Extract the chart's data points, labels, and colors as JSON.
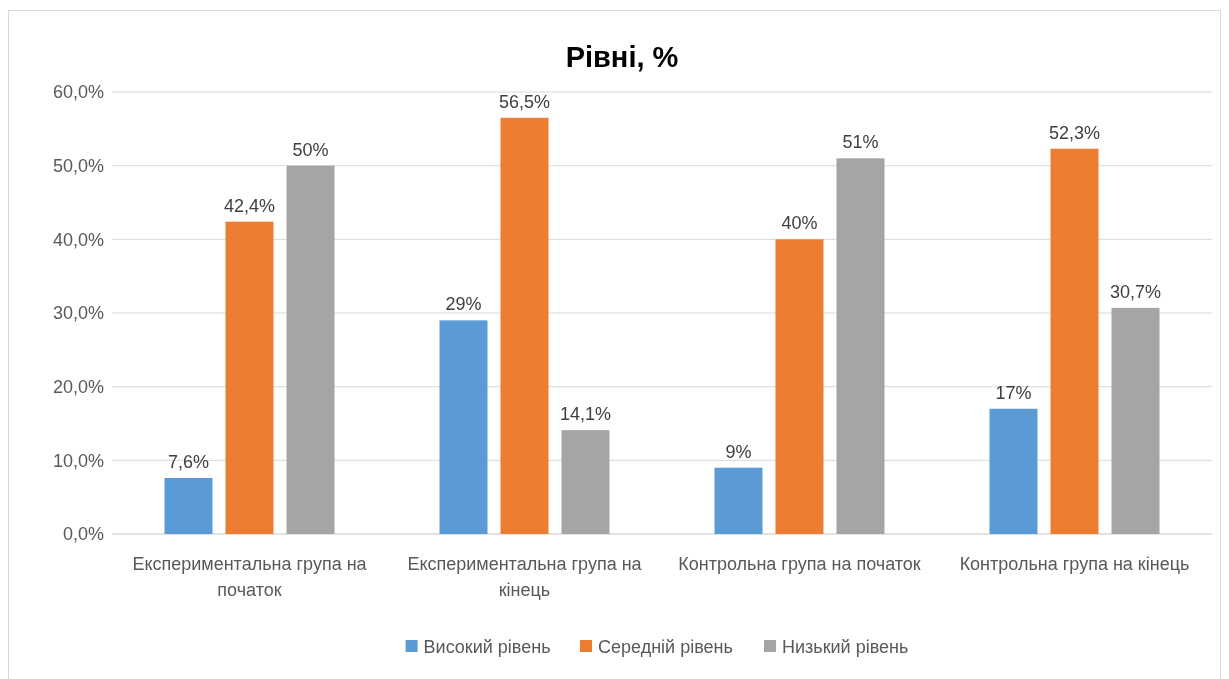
{
  "chart_data": {
    "type": "bar",
    "title": "Рівні, %",
    "categories": [
      "Експериментальна група на початок",
      "Експериментальна група на кінець",
      "Контрольна група на початок",
      "Контрольна група на кінець"
    ],
    "series": [
      {
        "name": "Високий рівень",
        "color": "#5b9bd5",
        "values": [
          7.6,
          29,
          9,
          17
        ],
        "value_labels": [
          "7,6%",
          "29%",
          "9%",
          "17%"
        ]
      },
      {
        "name": "Середній рівень",
        "color": "#ed7d31",
        "values": [
          42.4,
          56.5,
          40,
          52.3
        ],
        "value_labels": [
          "42,4%",
          "56,5%",
          "40%",
          "52,3%"
        ]
      },
      {
        "name": "Низький рівень",
        "color": "#a5a5a5",
        "values": [
          50,
          14.1,
          51,
          30.7
        ],
        "value_labels": [
          "50%",
          "14,1%",
          "51%",
          "30,7%"
        ]
      }
    ],
    "ylim": [
      0,
      60
    ],
    "yticks": [
      {
        "value": 0,
        "label": "0,0%"
      },
      {
        "value": 10,
        "label": "10,0%"
      },
      {
        "value": 20,
        "label": "20,0%"
      },
      {
        "value": 30,
        "label": "30,0%"
      },
      {
        "value": 40,
        "label": "40,0%"
      },
      {
        "value": 50,
        "label": "50,0%"
      },
      {
        "value": 60,
        "label": "60,0%"
      }
    ],
    "grid": "y",
    "legend": "bottom"
  }
}
